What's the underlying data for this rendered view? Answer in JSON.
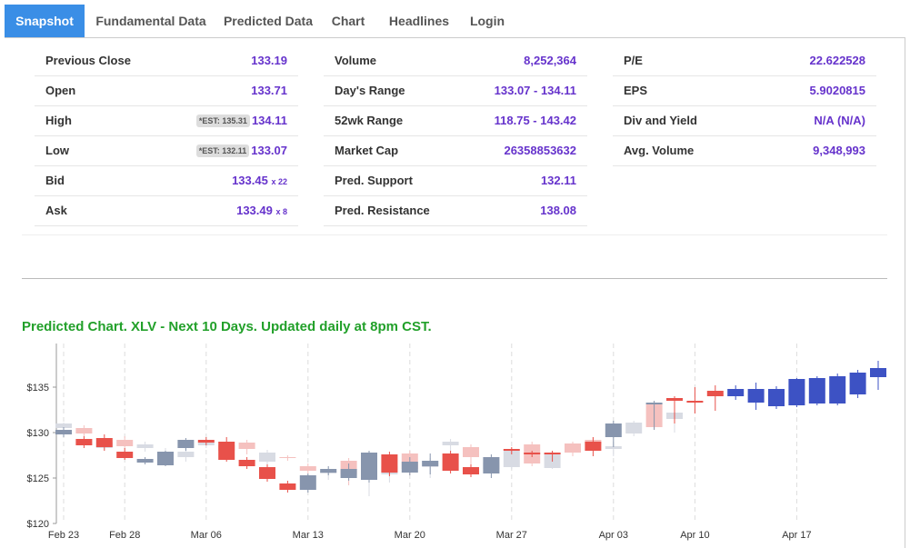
{
  "tabs": [
    "Snapshot",
    "Fundamental Data",
    "Predicted Data",
    "Chart",
    "Headlines",
    "Login"
  ],
  "snapshot": {
    "columns": [
      [
        {
          "label": "Previous Close",
          "value": "133.19"
        },
        {
          "label": "Open",
          "value": "133.71"
        },
        {
          "label": "High",
          "value": "134.11",
          "est": "*EST: 135.31"
        },
        {
          "label": "Low",
          "value": "133.07",
          "est": "*EST: 132.11"
        },
        {
          "label": "Bid",
          "value": "133.45",
          "size": "x 22"
        },
        {
          "label": "Ask",
          "value": "133.49",
          "size": "x 8"
        }
      ],
      [
        {
          "label": "Volume",
          "value": "8,252,364"
        },
        {
          "label": "Day's Range",
          "value": "133.07 - 134.11"
        },
        {
          "label": "52wk Range",
          "value": "118.75 - 143.42"
        },
        {
          "label": "Market Cap",
          "value": "26358853632"
        },
        {
          "label": "Pred. Support",
          "value": "132.11"
        },
        {
          "label": "Pred. Resistance",
          "value": "138.08"
        }
      ],
      [
        {
          "label": "P/E",
          "value": "22.622528"
        },
        {
          "label": "EPS",
          "value": "5.9020815"
        },
        {
          "label": "Div and Yield",
          "value": "N/A (N/A)"
        },
        {
          "label": "Avg. Volume",
          "value": "9,348,993"
        }
      ]
    ]
  },
  "chart_data": {
    "type": "candlestick",
    "title": "Predicted Chart. XLV - Next 10 Days. Updated daily at 8pm CST.",
    "categories": [
      "Feb 23",
      null,
      null,
      "Feb 28",
      null,
      null,
      null,
      "Mar 06",
      null,
      null,
      null,
      null,
      "Mar 13",
      null,
      null,
      null,
      null,
      "Mar 20",
      null,
      null,
      null,
      null,
      "Mar 27",
      null,
      null,
      null,
      null,
      "Apr 03",
      null,
      null,
      null,
      "Apr 10",
      null,
      null,
      null,
      null,
      "Apr 17",
      null,
      null,
      null,
      null
    ],
    "ylim": [
      120,
      139.8
    ],
    "yticks": [
      {
        "value": 120,
        "label": "$120"
      },
      {
        "value": 125,
        "label": "$125"
      },
      {
        "value": 130,
        "label": "$130"
      },
      {
        "value": 135,
        "label": "$135"
      }
    ],
    "grid": "x",
    "series": [
      {
        "up_color": "#d8dbe3",
        "down_color": "#f5c1bf",
        "open": [
          130.5,
          130.5,
          128.3,
          129.2,
          128.3,
          127.3,
          127.3,
          128.6,
          128.6,
          128.9,
          126.8,
          127.3,
          126.3,
          125.5,
          126.9,
          125.6,
          125.4,
          127.7,
          126.2,
          128.6,
          128.4,
          126.0,
          126.2,
          128.7,
          126.1,
          128.8,
          129.2,
          128.2,
          129.9,
          133.1,
          131.5,
          null,
          null,
          null,
          null,
          null,
          null,
          null,
          null,
          null,
          null
        ],
        "close": [
          131.0,
          129.9,
          128.9,
          128.5,
          128.7,
          127.9,
          127.9,
          129.0,
          128.0,
          128.2,
          127.8,
          127.2,
          125.8,
          125.8,
          125.4,
          126.3,
          126.3,
          126.0,
          126.9,
          129.0,
          127.3,
          126.7,
          128.0,
          126.6,
          127.8,
          127.8,
          128.7,
          128.5,
          131.1,
          130.6,
          132.2,
          null,
          null,
          null,
          null,
          null,
          null,
          null,
          null,
          null,
          null
        ],
        "high": [
          131.1,
          130.8,
          129.3,
          129.6,
          129.0,
          128.3,
          128.5,
          129.3,
          129.0,
          129.2,
          128.1,
          127.5,
          126.6,
          126.0,
          127.2,
          126.8,
          126.6,
          128.0,
          127.2,
          129.3,
          128.7,
          127.1,
          128.3,
          129.0,
          128.0,
          129.0,
          129.5,
          128.7,
          131.3,
          133.3,
          132.4,
          null,
          null,
          null,
          null,
          null,
          null,
          null,
          null,
          null,
          null
        ],
        "low": [
          130.3,
          129.6,
          128.0,
          128.2,
          127.9,
          126.9,
          126.8,
          128.3,
          127.6,
          127.6,
          126.4,
          126.9,
          125.5,
          124.8,
          124.2,
          123.0,
          124.5,
          125.3,
          125.0,
          127.6,
          126.5,
          125.4,
          126.0,
          126.3,
          126.0,
          127.4,
          128.3,
          127.4,
          129.6,
          130.3,
          130.0,
          null,
          null,
          null,
          null,
          null,
          null,
          null,
          null,
          null,
          null
        ]
      },
      {
        "up_color": "#8795ad",
        "down_color": "#e8514a",
        "open": [
          129.8,
          129.3,
          129.4,
          127.9,
          126.7,
          126.4,
          128.3,
          129.2,
          129.0,
          127.0,
          126.2,
          124.4,
          123.7,
          125.6,
          125.0,
          124.8,
          127.6,
          125.6,
          126.3,
          127.7,
          126.2,
          125.5,
          128.2,
          127.8,
          127.8,
          null,
          129.0,
          129.5,
          null,
          133.1,
          133.8,
          133.5,
          134.6,
          null,
          null,
          null,
          null,
          null,
          null,
          null,
          null
        ],
        "close": [
          130.3,
          128.6,
          128.4,
          127.2,
          127.1,
          127.9,
          129.2,
          128.9,
          127.0,
          126.3,
          124.9,
          123.7,
          125.3,
          126.0,
          126.0,
          127.8,
          125.6,
          126.8,
          126.9,
          125.8,
          125.4,
          127.3,
          128.0,
          127.6,
          127.6,
          null,
          128.0,
          131.0,
          null,
          133.3,
          133.5,
          133.3,
          134.0,
          null,
          null,
          null,
          null,
          null,
          null,
          null,
          null
        ],
        "high": [
          130.6,
          129.6,
          129.8,
          128.3,
          127.3,
          128.0,
          129.4,
          129.5,
          129.5,
          127.3,
          126.5,
          124.7,
          125.5,
          126.3,
          126.6,
          128.0,
          127.9,
          127.3,
          127.7,
          128.0,
          126.5,
          127.6,
          128.4,
          128.0,
          128.0,
          null,
          129.5,
          131.3,
          null,
          133.5,
          134.0,
          135.0,
          135.2,
          null,
          null,
          null,
          null,
          null,
          null,
          null,
          null
        ],
        "low": [
          129.5,
          128.3,
          128.0,
          127.0,
          126.5,
          126.3,
          128.0,
          128.6,
          126.8,
          126.0,
          124.6,
          123.4,
          123.4,
          125.3,
          124.7,
          124.5,
          125.2,
          125.3,
          125.4,
          125.5,
          125.1,
          125.0,
          127.6,
          127.3,
          126.8,
          null,
          127.4,
          128.4,
          null,
          130.3,
          131.0,
          132.1,
          132.4,
          null,
          null,
          null,
          null,
          null,
          null,
          null,
          null
        ]
      },
      {
        "up_color": "#3d52c4",
        "down_color": "#3d52c4",
        "open": [
          null,
          null,
          null,
          null,
          null,
          null,
          null,
          null,
          null,
          null,
          null,
          null,
          null,
          null,
          null,
          null,
          null,
          null,
          null,
          null,
          null,
          null,
          null,
          null,
          null,
          null,
          null,
          null,
          null,
          null,
          null,
          null,
          null,
          134.0,
          133.3,
          132.9,
          133.0,
          133.2,
          133.2,
          134.2,
          136.1
        ],
        "close": [
          null,
          null,
          null,
          null,
          null,
          null,
          null,
          null,
          null,
          null,
          null,
          null,
          null,
          null,
          null,
          null,
          null,
          null,
          null,
          null,
          null,
          null,
          null,
          null,
          null,
          null,
          null,
          null,
          null,
          null,
          null,
          null,
          null,
          134.8,
          134.8,
          134.8,
          135.9,
          136.0,
          136.2,
          136.6,
          137.1
        ],
        "high": [
          null,
          null,
          null,
          null,
          null,
          null,
          null,
          null,
          null,
          null,
          null,
          null,
          null,
          null,
          null,
          null,
          null,
          null,
          null,
          null,
          null,
          null,
          null,
          null,
          null,
          null,
          null,
          null,
          null,
          null,
          null,
          null,
          null,
          135.2,
          135.5,
          135.1,
          136.0,
          136.2,
          136.5,
          136.9,
          137.9
        ],
        "low": [
          null,
          null,
          null,
          null,
          null,
          null,
          null,
          null,
          null,
          null,
          null,
          null,
          null,
          null,
          null,
          null,
          null,
          null,
          null,
          null,
          null,
          null,
          null,
          null,
          null,
          null,
          null,
          null,
          null,
          null,
          null,
          null,
          null,
          133.6,
          132.5,
          132.6,
          132.8,
          133.0,
          133.0,
          133.8,
          134.7
        ]
      }
    ]
  }
}
